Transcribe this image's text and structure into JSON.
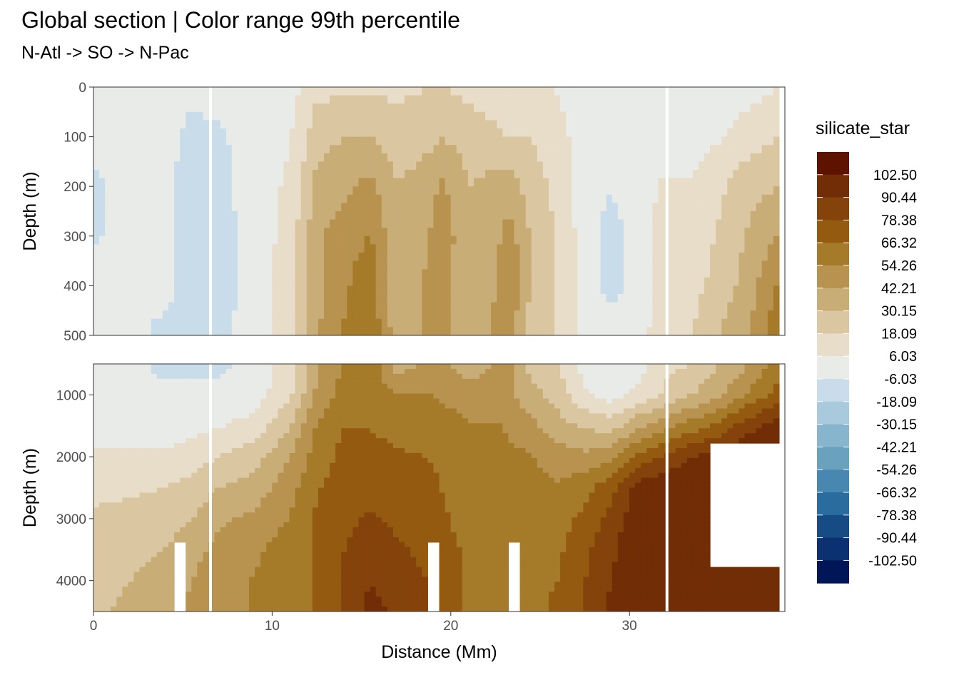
{
  "header": {
    "title": "Global section | Color range 99th percentile",
    "subtitle": "N-Atl -> SO -> N-Pac"
  },
  "chart_data": {
    "type": "heatmap",
    "title": "Global section | Color range 99th percentile",
    "subtitle": "N-Atl -> SO -> N-Pac",
    "xlabel": "Distance (Mm)",
    "ylabel": "Depth (m)",
    "xlim": [
      0,
      38.7
    ],
    "x_ticks": [
      "0",
      "10",
      "20",
      "30"
    ],
    "grid": true,
    "panels": [
      {
        "name": "upper",
        "ylim": [
          0,
          500
        ],
        "y_ticks": [
          "0",
          "100",
          "200",
          "300",
          "400",
          "500"
        ],
        "y_reversed": true
      },
      {
        "name": "lower",
        "ylim": [
          500,
          4500
        ],
        "y_ticks": [
          "1000",
          "2000",
          "3000",
          "4000"
        ],
        "y_reversed": true
      }
    ],
    "legend": {
      "title": "silicate_star",
      "position": "right",
      "labels": [
        "102.50",
        "90.44",
        "78.38",
        "66.32",
        "54.26",
        "42.21",
        "30.15",
        "18.09",
        "6.03",
        "-6.03",
        "-18.09",
        "-30.15",
        "-42.21",
        "-54.26",
        "-66.32",
        "-78.38",
        "-90.44",
        "-102.50"
      ],
      "colors": [
        "#5e1300",
        "#712d05",
        "#84430a",
        "#945b10",
        "#a57a28",
        "#b8934f",
        "#c9ad77",
        "#dac6a0",
        "#e8ddc8",
        "#e8ebe8",
        "#c8dde9",
        "#a9c9dc",
        "#87b5cd",
        "#6aa1bd",
        "#4888b0",
        "#2a6c9e",
        "#164b84",
        "#0b3170",
        "#001656"
      ]
    },
    "profiles_x": [
      0,
      2,
      4,
      5.5,
      7,
      9,
      11,
      12.5,
      14,
      15.5,
      17,
      18.8,
      19.5,
      21,
      22.8,
      23.3,
      24.5,
      26,
      27.5,
      29,
      30.5,
      32,
      33.5,
      35,
      36.5,
      38.2
    ],
    "profiles_depth": [
      0,
      100,
      200,
      300,
      400,
      500,
      1000,
      1500,
      2000,
      2500,
      3000,
      3500,
      4000,
      4500
    ],
    "values": [
      [
        0,
        0,
        -10,
        -8,
        0,
        0,
        0,
        0,
        8,
        15,
        20,
        22,
        25,
        28
      ],
      [
        0,
        0,
        0,
        0,
        0,
        0,
        0,
        0,
        8,
        16,
        22,
        26,
        30,
        33
      ],
      [
        0,
        0,
        0,
        0,
        0,
        -12,
        0,
        0,
        8,
        18,
        25,
        30,
        35,
        38
      ],
      [
        0,
        -12,
        -15,
        -15,
        -14,
        -13,
        0,
        2,
        12,
        22,
        30,
        38,
        42,
        45
      ],
      [
        0,
        -8,
        -10,
        -12,
        -12,
        -10,
        0,
        5,
        18,
        30,
        40,
        45,
        50,
        50
      ],
      [
        0,
        0,
        0,
        0,
        0,
        0,
        0,
        10,
        25,
        35,
        45,
        52,
        55,
        55
      ],
      [
        0,
        5,
        8,
        10,
        12,
        12,
        15,
        30,
        42,
        50,
        55,
        60,
        60,
        60
      ],
      [
        15,
        25,
        35,
        40,
        40,
        40,
        45,
        55,
        60,
        65,
        68,
        68,
        68,
        68
      ],
      [
        15,
        30,
        40,
        48,
        52,
        55,
        60,
        66,
        70,
        72,
        75,
        78,
        80,
        80
      ],
      [
        15,
        30,
        45,
        55,
        62,
        65,
        60,
        66,
        70,
        75,
        80,
        85,
        90,
        95
      ],
      [
        15,
        25,
        30,
        32,
        30,
        35,
        55,
        62,
        68,
        72,
        76,
        80,
        85,
        88
      ],
      [
        18,
        28,
        35,
        42,
        45,
        45,
        55,
        62,
        66,
        70,
        72,
        75,
        78,
        80
      ],
      [
        18,
        30,
        45,
        52,
        50,
        45,
        52,
        60,
        64,
        66,
        68,
        70,
        72,
        72
      ],
      [
        15,
        25,
        30,
        30,
        30,
        35,
        50,
        55,
        60,
        62,
        62,
        65,
        65,
        65
      ],
      [
        8,
        20,
        35,
        42,
        45,
        45,
        45,
        55,
        60,
        62,
        62,
        64,
        66,
        66
      ],
      [
        5,
        18,
        35,
        48,
        55,
        45,
        45,
        50,
        58,
        60,
        60,
        62,
        64,
        65
      ],
      [
        8,
        18,
        25,
        28,
        28,
        25,
        35,
        45,
        55,
        58,
        60,
        62,
        62,
        62
      ],
      [
        5,
        10,
        15,
        16,
        16,
        18,
        25,
        35,
        48,
        56,
        60,
        64,
        66,
        70
      ],
      [
        0,
        0,
        0,
        0,
        0,
        0,
        8,
        28,
        45,
        62,
        70,
        75,
        78,
        80
      ],
      [
        0,
        0,
        -5,
        -12,
        -10,
        0,
        0,
        25,
        50,
        75,
        82,
        88,
        90,
        95
      ],
      [
        0,
        0,
        0,
        0,
        0,
        0,
        10,
        40,
        70,
        95,
        100,
        102,
        102,
        102
      ],
      [
        0,
        0,
        8,
        12,
        12,
        15,
        20,
        50,
        80,
        102,
        102,
        102,
        102,
        102
      ],
      [
        0,
        0,
        8,
        10,
        14,
        18,
        30,
        60,
        90,
        102,
        102,
        102,
        102,
        102
      ],
      [
        0,
        5,
        15,
        20,
        22,
        30,
        40,
        70,
        95,
        102,
        102,
        102,
        102,
        102
      ],
      [
        0,
        12,
        25,
        30,
        35,
        40,
        55,
        85,
        102,
        102,
        102,
        102,
        102,
        102
      ],
      [
        5,
        18,
        30,
        42,
        55,
        60,
        70,
        95,
        102,
        102,
        102,
        102,
        102,
        102
      ]
    ],
    "missing_regions": [
      "deep white gaps at ~5, ~6.5, ~19, ~23.5 and ~32 Mm",
      "white region beyond ~34.5 Mm between ~1800 m and ~3800 m"
    ]
  }
}
